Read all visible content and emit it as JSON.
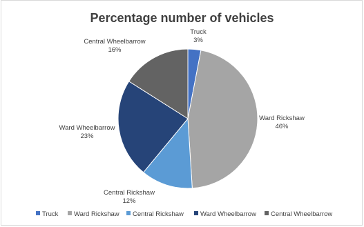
{
  "chart_data": {
    "type": "pie",
    "title": "Percentage number of vehicles",
    "categories": [
      "Truck",
      "Ward Rickshaw",
      "Central Rickshaw",
      "Ward Wheelbarrow",
      "Central Wheelbarrow"
    ],
    "values": [
      3,
      46,
      12,
      23,
      16
    ],
    "value_labels": [
      "3%",
      "46%",
      "12%",
      "23%",
      "16%"
    ],
    "colors": [
      "#4472c4",
      "#a5a5a5",
      "#5b9bd5",
      "#264478",
      "#636363"
    ],
    "legend_position": "bottom"
  }
}
